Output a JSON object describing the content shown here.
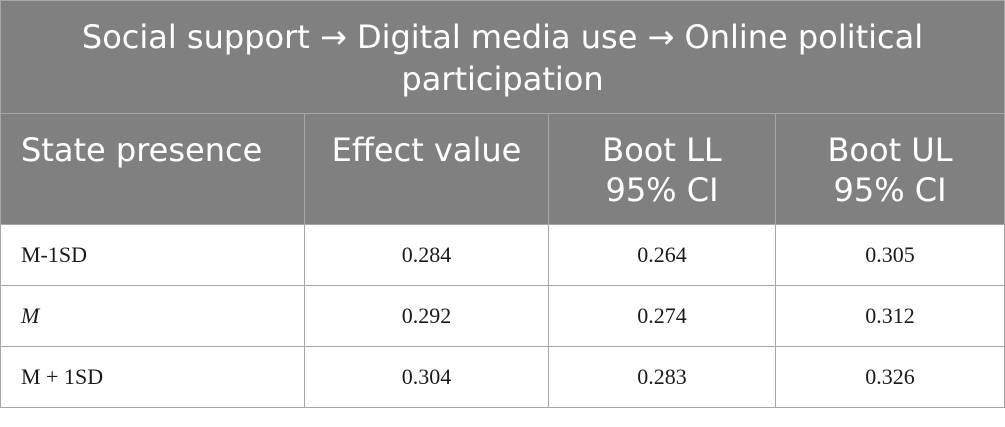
{
  "table": {
    "title": "Social support → Digital media use → Online political participation",
    "columns": [
      "State presence",
      "Effect value",
      "Boot LL\n95% CI",
      "Boot UL\n95% CI"
    ],
    "rows": [
      {
        "label": "M-1SD",
        "effect": "0.284",
        "boot_ll": "0.264",
        "boot_ul": "0.305"
      },
      {
        "label": "M",
        "effect": "0.292",
        "boot_ll": "0.274",
        "boot_ul": "0.312"
      },
      {
        "label": "M + 1SD",
        "effect": "0.304",
        "boot_ll": "0.283",
        "boot_ul": "0.326"
      }
    ]
  },
  "colors": {
    "header_bg": "#808080",
    "header_text": "#ffffff",
    "border": "#a6a6a6"
  }
}
